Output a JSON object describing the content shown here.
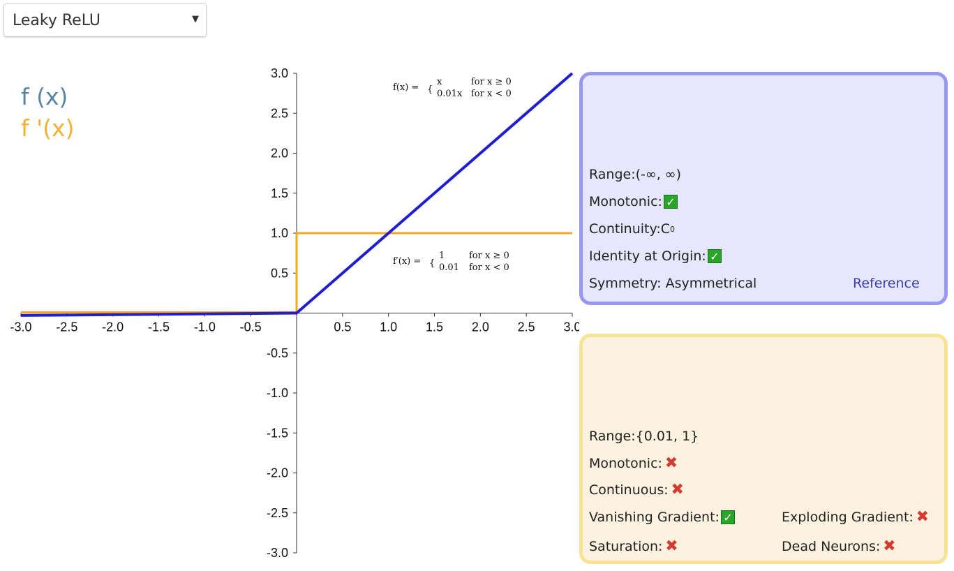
{
  "selector": {
    "value": "Leaky ReLU",
    "arrow": "▼"
  },
  "legend": {
    "f": "f (x)",
    "df": "f '(x)"
  },
  "colors": {
    "f_line": "#1f1fd0",
    "df_line": "#f5a623",
    "f_panel_border": "#9898f2",
    "df_panel_border": "#f8e294"
  },
  "formulas": {
    "f": {
      "lhs": "f(x) =",
      "case1_expr": "x",
      "case1_cond": "for x ≥ 0",
      "case2_expr": "0.01x",
      "case2_cond": "for x < 0"
    },
    "df": {
      "lhs": "f′(x) =",
      "case1_expr": "1",
      "case1_cond": "for x ≥ 0",
      "case2_expr": "0.01",
      "case2_cond": "for x < 0"
    }
  },
  "f_panel": {
    "range_label": "Range:",
    "range_value": "(-∞, ∞)",
    "monotonic_label": "Monotonic:",
    "monotonic": "check-icon",
    "continuity_label": "Continuity:",
    "continuity_value": "C",
    "continuity_sup": "0",
    "identity_label": "Identity at Origin:",
    "identity": "check-icon",
    "symmetry_label": "Symmetry: Asymmetrical",
    "reference": "Reference"
  },
  "df_panel": {
    "range_label": "Range:",
    "range_value": "{0.01, 1}",
    "monotonic_label": "Monotonic:",
    "monotonic": "cross-icon",
    "continuous_label": "Continuous:",
    "continuous": "cross-icon",
    "vanishing_label": "Vanishing Gradient:",
    "vanishing": "check-icon",
    "exploding_label": "Exploding Gradient:",
    "exploding": "cross-icon",
    "saturation_label": "Saturation:",
    "saturation": "cross-icon",
    "dead_label": "Dead Neurons:",
    "dead": "cross-icon"
  },
  "chart_data": {
    "type": "line",
    "xlim": [
      -3,
      3
    ],
    "ylim": [
      -3,
      3
    ],
    "x_ticks": [
      "-3.0",
      "-2.5",
      "-2.0",
      "-1.5",
      "-1.0",
      "-0.5",
      "0.5",
      "1.0",
      "1.5",
      "2.0",
      "2.5",
      "3.0"
    ],
    "y_ticks": [
      "3.0",
      "2.5",
      "2.0",
      "1.5",
      "1.0",
      "0.5",
      "-0.5",
      "-1.0",
      "-1.5",
      "-2.0",
      "-2.5",
      "-3.0"
    ],
    "series": [
      {
        "name": "f (x)",
        "x": [
          -3,
          0,
          3
        ],
        "y": [
          -0.03,
          0,
          3
        ]
      },
      {
        "name": "f '(x)",
        "x": [
          -3,
          0,
          0,
          3
        ],
        "y": [
          0.01,
          0.01,
          1,
          1
        ]
      }
    ]
  }
}
